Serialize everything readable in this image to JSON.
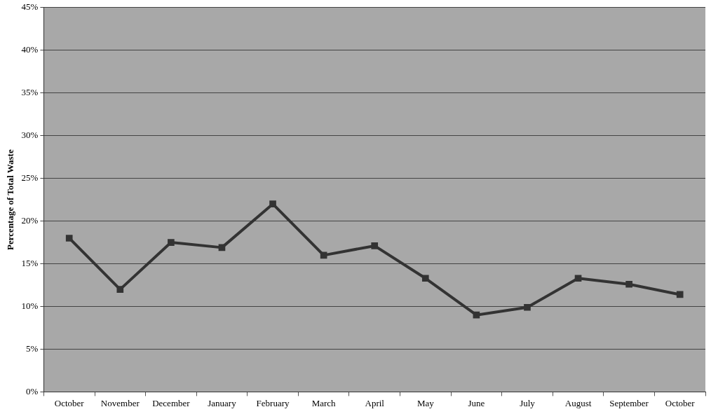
{
  "chart_data": {
    "type": "line",
    "ylabel": "Percentage of Total Waste",
    "categories": [
      "October",
      "November",
      "December",
      "January",
      "February",
      "March",
      "April",
      "May",
      "June",
      "July",
      "August",
      "September",
      "October"
    ],
    "series": [
      {
        "color": "#333333",
        "values": [
          18,
          12,
          17.5,
          16.9,
          22,
          16,
          17.1,
          13.3,
          9,
          9.9,
          13.3,
          12.6,
          11.4
        ]
      }
    ],
    "ylim": [
      0,
      45
    ],
    "yticks": [
      {
        "value": 0,
        "label": "0%"
      },
      {
        "value": 5,
        "label": "5%"
      },
      {
        "value": 10,
        "label": "10%"
      },
      {
        "value": 15,
        "label": "15%"
      },
      {
        "value": 20,
        "label": "20%"
      },
      {
        "value": 25,
        "label": "25%"
      },
      {
        "value": 30,
        "label": "30%"
      },
      {
        "value": 35,
        "label": "35%"
      },
      {
        "value": 40,
        "label": "40%"
      },
      {
        "value": 45,
        "label": "45%"
      }
    ],
    "grid": "y",
    "marker": "square",
    "line_style": "solid",
    "legend": false
  }
}
